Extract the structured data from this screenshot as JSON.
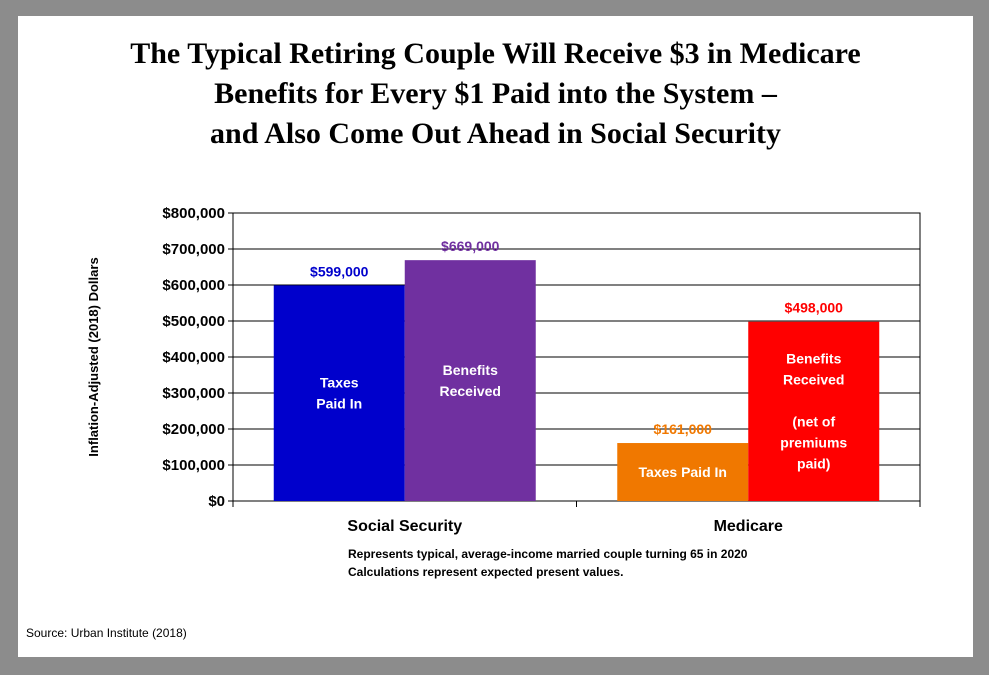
{
  "title_lines": [
    "The Typical Retiring Couple Will Receive $3 in Medicare",
    "Benefits for Every $1 Paid into the System –",
    "and Also Come Out Ahead in Social Security"
  ],
  "notes": [
    "Represents typical, average-income married couple turning 65 in 2020",
    "Calculations  represent expected present values."
  ],
  "source": "Source: Urban Institute (2018)",
  "chart_data": {
    "type": "bar",
    "ylabel": "Inflation-Adjusted (2018) Dollars",
    "ylim": [
      0,
      800000
    ],
    "yticks": [
      0,
      100000,
      200000,
      300000,
      400000,
      500000,
      600000,
      700000,
      800000
    ],
    "ytick_labels": [
      "$0",
      "$100,000",
      "$200,000",
      "$300,000",
      "$400,000",
      "$500,000",
      "$600,000",
      "$700,000",
      "$800,000"
    ],
    "grid": true,
    "categories": [
      "Social Security",
      "Medicare"
    ],
    "bars": [
      {
        "category": "Social Security",
        "value": 599000,
        "value_label": "$599,000",
        "inner_label": [
          "Taxes",
          "Paid In"
        ],
        "color": "#0000cc",
        "label_color": "#0000cc"
      },
      {
        "category": "Social Security",
        "value": 669000,
        "value_label": "$669,000",
        "inner_label": [
          "Benefits",
          "Received"
        ],
        "color": "#7030a0",
        "label_color": "#7030a0"
      },
      {
        "category": "Medicare",
        "value": 161000,
        "value_label": "$161,000",
        "inner_label": [
          "Taxes Paid In"
        ],
        "color": "#f07800",
        "label_color": "#f07800"
      },
      {
        "category": "Medicare",
        "value": 498000,
        "value_label": "$498,000",
        "inner_label": [
          "Benefits",
          "Received",
          "",
          "(net of",
          "premiums",
          "paid)"
        ],
        "color": "#ff0000",
        "label_color": "#ff0000"
      }
    ]
  }
}
